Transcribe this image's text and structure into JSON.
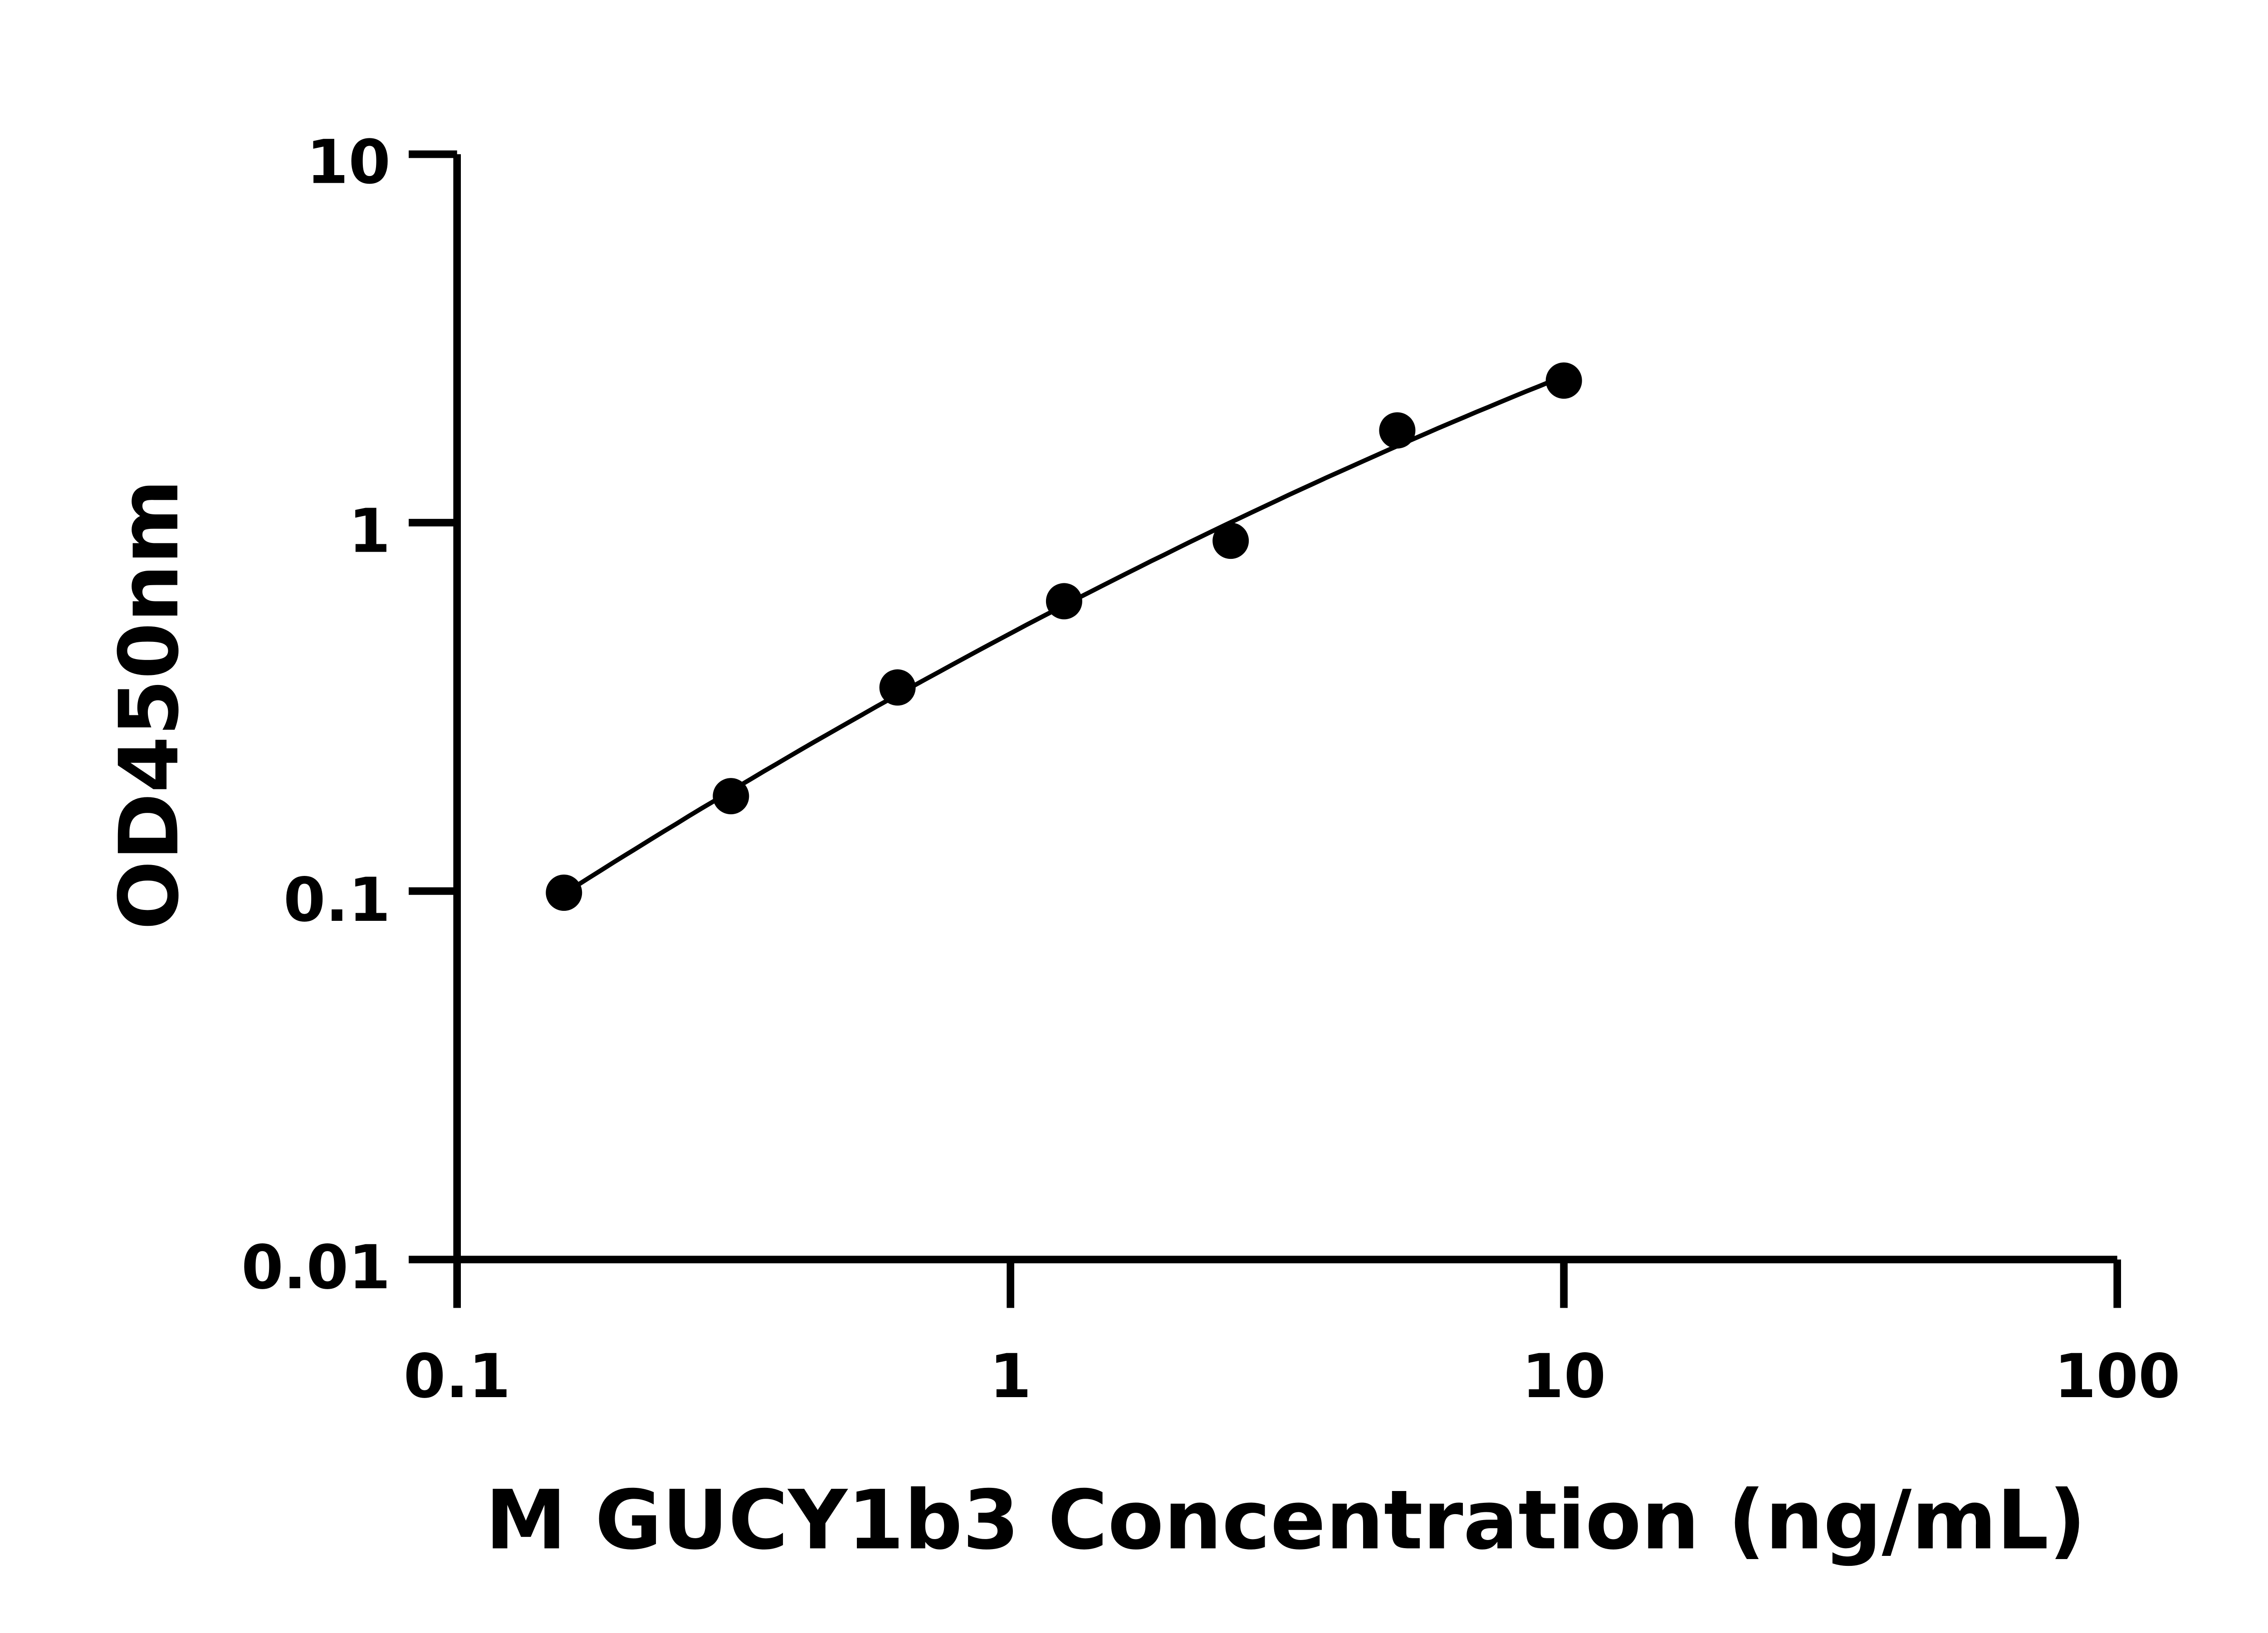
{
  "chart_data": {
    "type": "scatter",
    "title": "",
    "xlabel": "M GUCY1b3 Concentration (ng/mL)",
    "ylabel": "OD450nm",
    "xscale": "log",
    "yscale": "log",
    "xlim": [
      0.1,
      100
    ],
    "ylim": [
      0.01,
      10
    ],
    "xticks": [
      "0.1",
      "1",
      "10",
      "100"
    ],
    "yticks": [
      "0.01",
      "0.1",
      "1",
      "10"
    ],
    "grid": false,
    "fit_curve": true,
    "marker_color": "#000000",
    "x": [
      0.156,
      0.3125,
      0.625,
      1.25,
      2.5,
      5,
      10
    ],
    "y": [
      0.099,
      0.181,
      0.357,
      0.612,
      0.893,
      1.78,
      2.43
    ]
  }
}
